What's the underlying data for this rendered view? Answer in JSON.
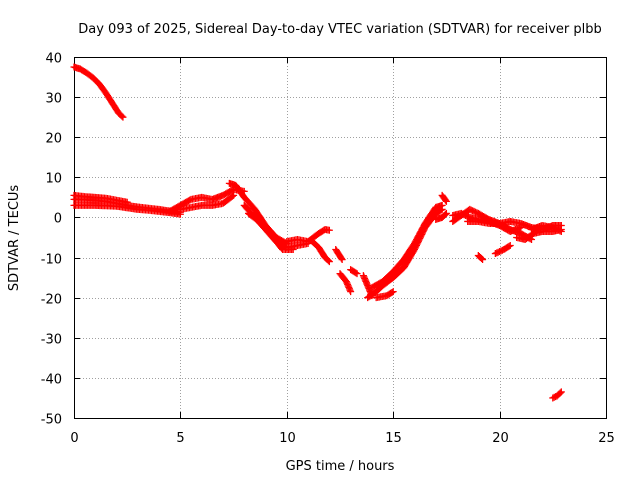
{
  "chart_data": {
    "type": "scatter",
    "title": "Day 093 of 2025, Sidereal Day-to-day VTEC variation (SDTVAR) for receiver plbb",
    "xlabel": "GPS time / hours",
    "ylabel": "SDTVAR / TECUs",
    "xlim": [
      0,
      25
    ],
    "ylim": [
      -50,
      40
    ],
    "xticks": [
      0,
      5,
      10,
      15,
      20,
      25
    ],
    "yticks": [
      -50,
      -40,
      -30,
      -20,
      -10,
      0,
      10,
      20,
      30,
      40
    ],
    "grid": true,
    "marker": "plus",
    "series": [
      {
        "name": "SDTVAR",
        "color": "#ff0000",
        "segments": [
          [
            [
              0.0,
              37.5
            ],
            [
              0.3,
              37.0
            ],
            [
              0.6,
              36.0
            ],
            [
              0.9,
              34.8
            ],
            [
              1.2,
              33.2
            ],
            [
              1.5,
              31.0
            ],
            [
              1.8,
              28.5
            ],
            [
              2.1,
              26.0
            ],
            [
              2.3,
              25.0
            ]
          ],
          [
            [
              0.0,
              4.5
            ],
            [
              0.5,
              4.4
            ],
            [
              1.0,
              4.2
            ],
            [
              1.5,
              4.0
            ],
            [
              2.0,
              3.5
            ],
            [
              2.5,
              3.0
            ],
            [
              3.0,
              2.6
            ],
            [
              3.5,
              2.3
            ],
            [
              4.0,
              2.0
            ],
            [
              4.5,
              1.6
            ],
            [
              5.0,
              1.3
            ]
          ],
          [
            [
              0.0,
              3.0
            ],
            [
              0.5,
              3.0
            ],
            [
              1.0,
              3.0
            ],
            [
              1.5,
              2.9
            ],
            [
              2.0,
              2.8
            ],
            [
              2.5,
              2.4
            ],
            [
              3.0,
              2.0
            ],
            [
              3.5,
              1.8
            ],
            [
              4.0,
              1.5
            ],
            [
              4.5,
              1.2
            ],
            [
              5.0,
              0.8
            ]
          ],
          [
            [
              0.0,
              5.5
            ],
            [
              0.5,
              5.2
            ],
            [
              1.0,
              5.0
            ],
            [
              1.5,
              4.8
            ],
            [
              2.0,
              4.3
            ],
            [
              2.5,
              3.8
            ]
          ],
          [
            [
              4.5,
              1.5
            ],
            [
              5.0,
              3.0
            ],
            [
              5.5,
              4.5
            ],
            [
              6.0,
              5.0
            ],
            [
              6.5,
              4.5
            ],
            [
              7.0,
              5.5
            ],
            [
              7.5,
              7.0
            ],
            [
              8.0,
              6.5
            ]
          ],
          [
            [
              5.0,
              2.0
            ],
            [
              5.5,
              2.5
            ],
            [
              6.0,
              3.0
            ],
            [
              6.5,
              3.0
            ],
            [
              7.0,
              3.5
            ],
            [
              7.5,
              5.5
            ]
          ],
          [
            [
              7.3,
              8.5
            ],
            [
              7.6,
              8.0
            ],
            [
              8.0,
              5.0
            ],
            [
              8.5,
              2.0
            ],
            [
              9.0,
              -2.0
            ],
            [
              9.5,
              -5.0
            ],
            [
              10.0,
              -6.5
            ]
          ],
          [
            [
              8.0,
              3.0
            ],
            [
              8.5,
              0.0
            ],
            [
              9.0,
              -3.0
            ],
            [
              9.5,
              -6.0
            ],
            [
              10.0,
              -7.5
            ],
            [
              10.5,
              -7.0
            ],
            [
              11.0,
              -6.5
            ]
          ],
          [
            [
              8.2,
              1.0
            ],
            [
              8.7,
              -1.0
            ],
            [
              9.2,
              -4.0
            ],
            [
              9.8,
              -8.0
            ],
            [
              10.3,
              -8.0
            ]
          ],
          [
            [
              10.0,
              -6.0
            ],
            [
              10.5,
              -5.5
            ],
            [
              11.0,
              -6.0
            ],
            [
              11.5,
              -4.0
            ],
            [
              11.8,
              -3.0
            ],
            [
              12.0,
              -3.2
            ]
          ],
          [
            [
              11.2,
              -6.0
            ],
            [
              11.5,
              -7.5
            ],
            [
              11.8,
              -10.0
            ],
            [
              12.0,
              -11.0
            ]
          ],
          [
            [
              12.3,
              -8.0
            ],
            [
              12.6,
              -10.5
            ]
          ],
          [
            [
              12.5,
              -14.0
            ],
            [
              12.8,
              -16.0
            ],
            [
              13.0,
              -18.5
            ]
          ],
          [
            [
              13.0,
              -13.0
            ],
            [
              13.3,
              -14.0
            ]
          ],
          [
            [
              13.6,
              -14.5
            ],
            [
              13.8,
              -17.0
            ],
            [
              14.0,
              -19.5
            ]
          ],
          [
            [
              13.8,
              -20.0
            ],
            [
              14.2,
              -18.5
            ],
            [
              14.5,
              -17.0
            ],
            [
              15.0,
              -15.0
            ],
            [
              15.5,
              -12.5
            ],
            [
              16.0,
              -8.0
            ],
            [
              16.5,
              -2.5
            ],
            [
              17.0,
              1.0
            ],
            [
              17.3,
              2.0
            ]
          ],
          [
            [
              14.0,
              -17.5
            ],
            [
              14.5,
              -16.0
            ],
            [
              15.0,
              -13.5
            ],
            [
              15.5,
              -10.5
            ],
            [
              16.0,
              -6.5
            ],
            [
              16.5,
              -1.5
            ],
            [
              17.0,
              2.5
            ],
            [
              17.3,
              3.0
            ]
          ],
          [
            [
              14.2,
              -20.0
            ],
            [
              14.7,
              -19.5
            ],
            [
              15.0,
              -18.5
            ]
          ],
          [
            [
              17.0,
              -0.5
            ],
            [
              17.3,
              0.0
            ],
            [
              17.5,
              1.0
            ]
          ],
          [
            [
              17.3,
              5.5
            ],
            [
              17.5,
              4.0
            ]
          ],
          [
            [
              17.8,
              -1.0
            ],
            [
              18.2,
              0.5
            ],
            [
              18.6,
              2.0
            ],
            [
              19.0,
              1.0
            ],
            [
              19.5,
              -0.5
            ],
            [
              20.0,
              -1.5
            ],
            [
              20.5,
              -3.0
            ],
            [
              21.0,
              -4.0
            ],
            [
              21.5,
              -5.5
            ]
          ],
          [
            [
              17.8,
              0.5
            ],
            [
              18.2,
              1.0
            ],
            [
              18.6,
              0.0
            ],
            [
              19.0,
              -0.5
            ],
            [
              19.5,
              -1.0
            ],
            [
              20.0,
              -2.0
            ],
            [
              20.5,
              -3.5
            ],
            [
              21.0,
              -2.5
            ]
          ],
          [
            [
              18.5,
              -1.0
            ],
            [
              19.0,
              -1.0
            ],
            [
              19.5,
              -1.5
            ],
            [
              20.0,
              -1.5
            ],
            [
              20.5,
              -1.0
            ]
          ],
          [
            [
              19.0,
              -9.5
            ],
            [
              19.2,
              -10.5
            ]
          ],
          [
            [
              19.8,
              -9.0
            ],
            [
              20.2,
              -8.0
            ],
            [
              20.5,
              -7.0
            ]
          ],
          [
            [
              20.5,
              -1.0
            ],
            [
              21.0,
              -1.5
            ],
            [
              21.5,
              -2.5
            ],
            [
              22.0,
              -3.0
            ],
            [
              22.5,
              -2.0
            ],
            [
              22.9,
              -2.0
            ]
          ],
          [
            [
              20.8,
              -5.0
            ],
            [
              21.2,
              -5.5
            ],
            [
              21.6,
              -4.0
            ],
            [
              22.0,
              -3.5
            ],
            [
              22.5,
              -3.5
            ],
            [
              22.9,
              -3.0
            ]
          ],
          [
            [
              21.5,
              -3.0
            ],
            [
              22.0,
              -2.0
            ],
            [
              22.5,
              -2.5
            ],
            [
              22.9,
              -3.5
            ]
          ],
          [
            [
              22.5,
              -45.0
            ],
            [
              22.7,
              -44.5
            ],
            [
              22.9,
              -43.5
            ]
          ]
        ]
      }
    ]
  }
}
